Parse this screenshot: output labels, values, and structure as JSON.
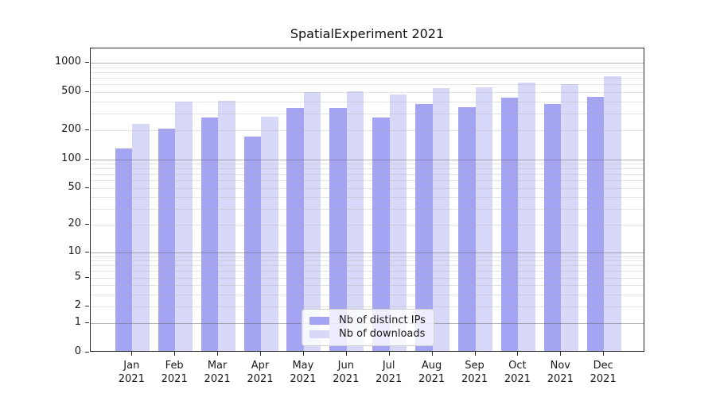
{
  "chart_data": {
    "type": "bar",
    "title": "SpatialExperiment 2021",
    "categories": [
      "Jan 2021",
      "Feb 2021",
      "Mar 2021",
      "Apr 2021",
      "May 2021",
      "Jun 2021",
      "Jul 2021",
      "Aug 2021",
      "Sep 2021",
      "Oct 2021",
      "Nov 2021",
      "Dec 2021"
    ],
    "series": [
      {
        "name": "Nb of distinct IPs",
        "color": "#a4a4f3",
        "values": [
          124,
          200,
          262,
          165,
          328,
          330,
          264,
          362,
          336,
          420,
          360,
          432
        ]
      },
      {
        "name": "Nb of downloads",
        "color": "#d8d8f8",
        "values": [
          224,
          381,
          392,
          265,
          484,
          490,
          455,
          528,
          538,
          607,
          578,
          699
        ]
      }
    ],
    "y_scale": "log1p",
    "y_axis": {
      "ticks": [
        0,
        1,
        2,
        5,
        10,
        20,
        50,
        100,
        200,
        500,
        1000
      ],
      "range": [
        0,
        1420
      ],
      "major_gridlines": [
        1,
        10,
        100,
        1000
      ],
      "minor_gridline_multipliers": [
        2,
        3,
        4,
        5,
        6,
        7,
        8,
        9
      ],
      "minor_gridline_decades": [
        1,
        10,
        100
      ]
    },
    "grid": true,
    "legend_position": "lower center",
    "legend": {
      "items": [
        {
          "label": "Nb of distinct IPs",
          "color": "#a4a4f3"
        },
        {
          "label": "Nb of downloads",
          "color": "#d8d8f8"
        }
      ]
    },
    "colors": {
      "major_grid": "rgba(105,105,105,0.5)",
      "minor_grid": "rgba(178,178,178,0.35)",
      "spine": "#2b2b2b"
    }
  }
}
